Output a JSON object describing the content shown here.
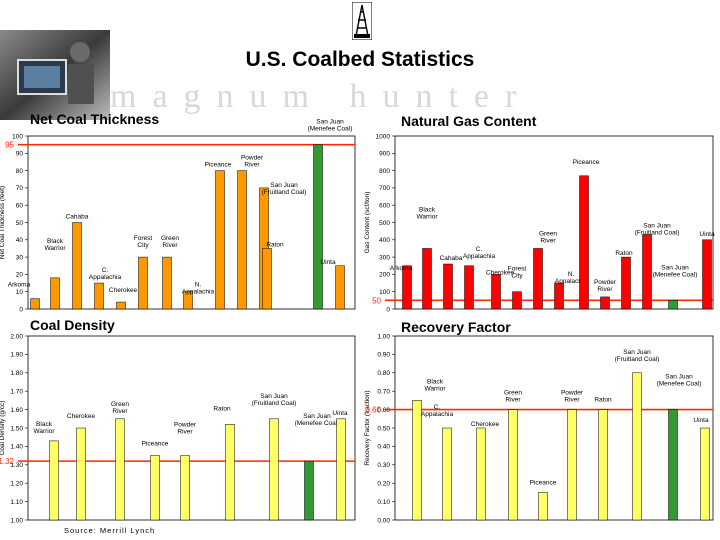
{
  "page": {
    "title": "U.S. Coalbed Statistics",
    "brand": "magnum hunter",
    "source": "Source:  Merrill Lynch"
  },
  "colors": {
    "orange": "#ff9900",
    "red": "#ff0000",
    "green": "#339933",
    "yellow": "#ffff66",
    "ref_line": "#ff2a00"
  },
  "chart_data": [
    {
      "id": "thickness",
      "type": "bar",
      "title": "Net Coal Thickness",
      "ylabel": "Net Coal Thickness (feet)",
      "ylim": [
        0,
        100
      ],
      "yticks": [
        "0",
        "10",
        "20",
        "30",
        "40",
        "50",
        "60",
        "70",
        "80",
        "90",
        "100"
      ],
      "reference": {
        "value": 95,
        "label": "95"
      },
      "bar_color": "orange",
      "bars": [
        {
          "label": "Arkoma",
          "value": 6
        },
        {
          "label": "Black Warrior",
          "value": 18
        },
        {
          "label": "Cahaba",
          "value": 50
        },
        {
          "label": "C. Appalachia",
          "value": 15
        },
        {
          "label": "Cherokee",
          "value": 4
        },
        {
          "label": "Forest City",
          "value": 30
        },
        {
          "label": "Green River",
          "value": 30
        },
        {
          "label": "N. Appalachia",
          "value": 10
        },
        {
          "label": "Piceance",
          "value": 80
        },
        {
          "label": "Powder River",
          "value": 80
        },
        {
          "label": "San Juan (Fruitland Coal)",
          "value": 70
        },
        {
          "label": "Raton",
          "value": 35
        },
        {
          "label": "San Juan (Menefee Coal)",
          "value": 95,
          "color": "green"
        },
        {
          "label": "Uinta",
          "value": 25
        }
      ]
    },
    {
      "id": "gas",
      "type": "bar",
      "title": "Natural Gas Content",
      "ylabel": "Gas Content (scf/ton)",
      "ylim": [
        0,
        1000
      ],
      "yticks": [
        "0",
        "100",
        "200",
        "300",
        "400",
        "500",
        "600",
        "700",
        "800",
        "900",
        "1000"
      ],
      "reference": {
        "value": 50,
        "label": "50"
      },
      "bar_color": "red",
      "bars": [
        {
          "label": "Arkoma",
          "value": 250
        },
        {
          "label": "Black Warrior",
          "value": 350
        },
        {
          "label": "Cahaba",
          "value": 260
        },
        {
          "label": "C. Appalachia",
          "value": 250
        },
        {
          "label": "Cherokee",
          "value": 200
        },
        {
          "label": "Forest City",
          "value": 100
        },
        {
          "label": "Green River",
          "value": 350
        },
        {
          "label": "N. Appalachia",
          "value": 150
        },
        {
          "label": "Piceance",
          "value": 770
        },
        {
          "label": "Powder River",
          "value": 70
        },
        {
          "label": "Raton",
          "value": 300
        },
        {
          "label": "San Juan (Fruitland Coal)",
          "value": 430
        },
        {
          "label": "San Juan (Menefee Coal)",
          "value": 50,
          "color": "green"
        },
        {
          "label": "Uinta",
          "value": 400
        }
      ]
    },
    {
      "id": "density",
      "type": "bar",
      "title": "Coal Density",
      "ylabel": "Coal Density (g/cc)",
      "ylim": [
        1.0,
        2.0
      ],
      "yticks": [
        "1.00",
        "1.10",
        "1.20",
        "1.30",
        "1.40",
        "1.50",
        "1.60",
        "1.70",
        "1.80",
        "1.90",
        "2.00"
      ],
      "reference": {
        "value": 1.32,
        "label": "1.32"
      },
      "bar_color": "yellow",
      "bars": [
        {
          "label": "Black Warrior",
          "value": 1.43
        },
        {
          "label": "Cherokee",
          "value": 1.5
        },
        {
          "label": "Green River",
          "value": 1.55
        },
        {
          "label": "Piceance",
          "value": 1.35
        },
        {
          "label": "Powder River",
          "value": 1.35
        },
        {
          "label": "Raton",
          "value": 1.52
        },
        {
          "label": "San Juan (Fruitland Coal)",
          "value": 1.55
        },
        {
          "label": "San Juan (Menefee Coal)",
          "value": 1.32,
          "color": "green"
        },
        {
          "label": "Uinta",
          "value": 1.55
        }
      ]
    },
    {
      "id": "recovery",
      "type": "bar",
      "title": "Recovery Factor",
      "ylabel": "Recovery Factor (fraction)",
      "ylim": [
        0,
        1
      ],
      "yticks": [
        "0.00",
        "0.10",
        "0.20",
        "0.30",
        "0.40",
        "0.50",
        "0.60",
        "0.70",
        "0.80",
        "0.90",
        "1.00"
      ],
      "reference": {
        "value": 0.6,
        "label": "0.60"
      },
      "bar_color": "yellow",
      "bars": [
        {
          "label": "Black Warrior",
          "value": 0.65
        },
        {
          "label": "C. Appalachia",
          "value": 0.5
        },
        {
          "label": "Cherokee",
          "value": 0.5
        },
        {
          "label": "Green River",
          "value": 0.6
        },
        {
          "label": "Piceance",
          "value": 0.15
        },
        {
          "label": "Powder River",
          "value": 0.6
        },
        {
          "label": "San Juan (Fruitland Coal)",
          "value": 0.8
        },
        {
          "label": "Raton",
          "value": 0.6
        },
        {
          "label": "San Juan (Menefee Coal)",
          "value": 0.6,
          "color": "green"
        },
        {
          "label": "Uinta",
          "value": 0.5
        }
      ]
    }
  ]
}
